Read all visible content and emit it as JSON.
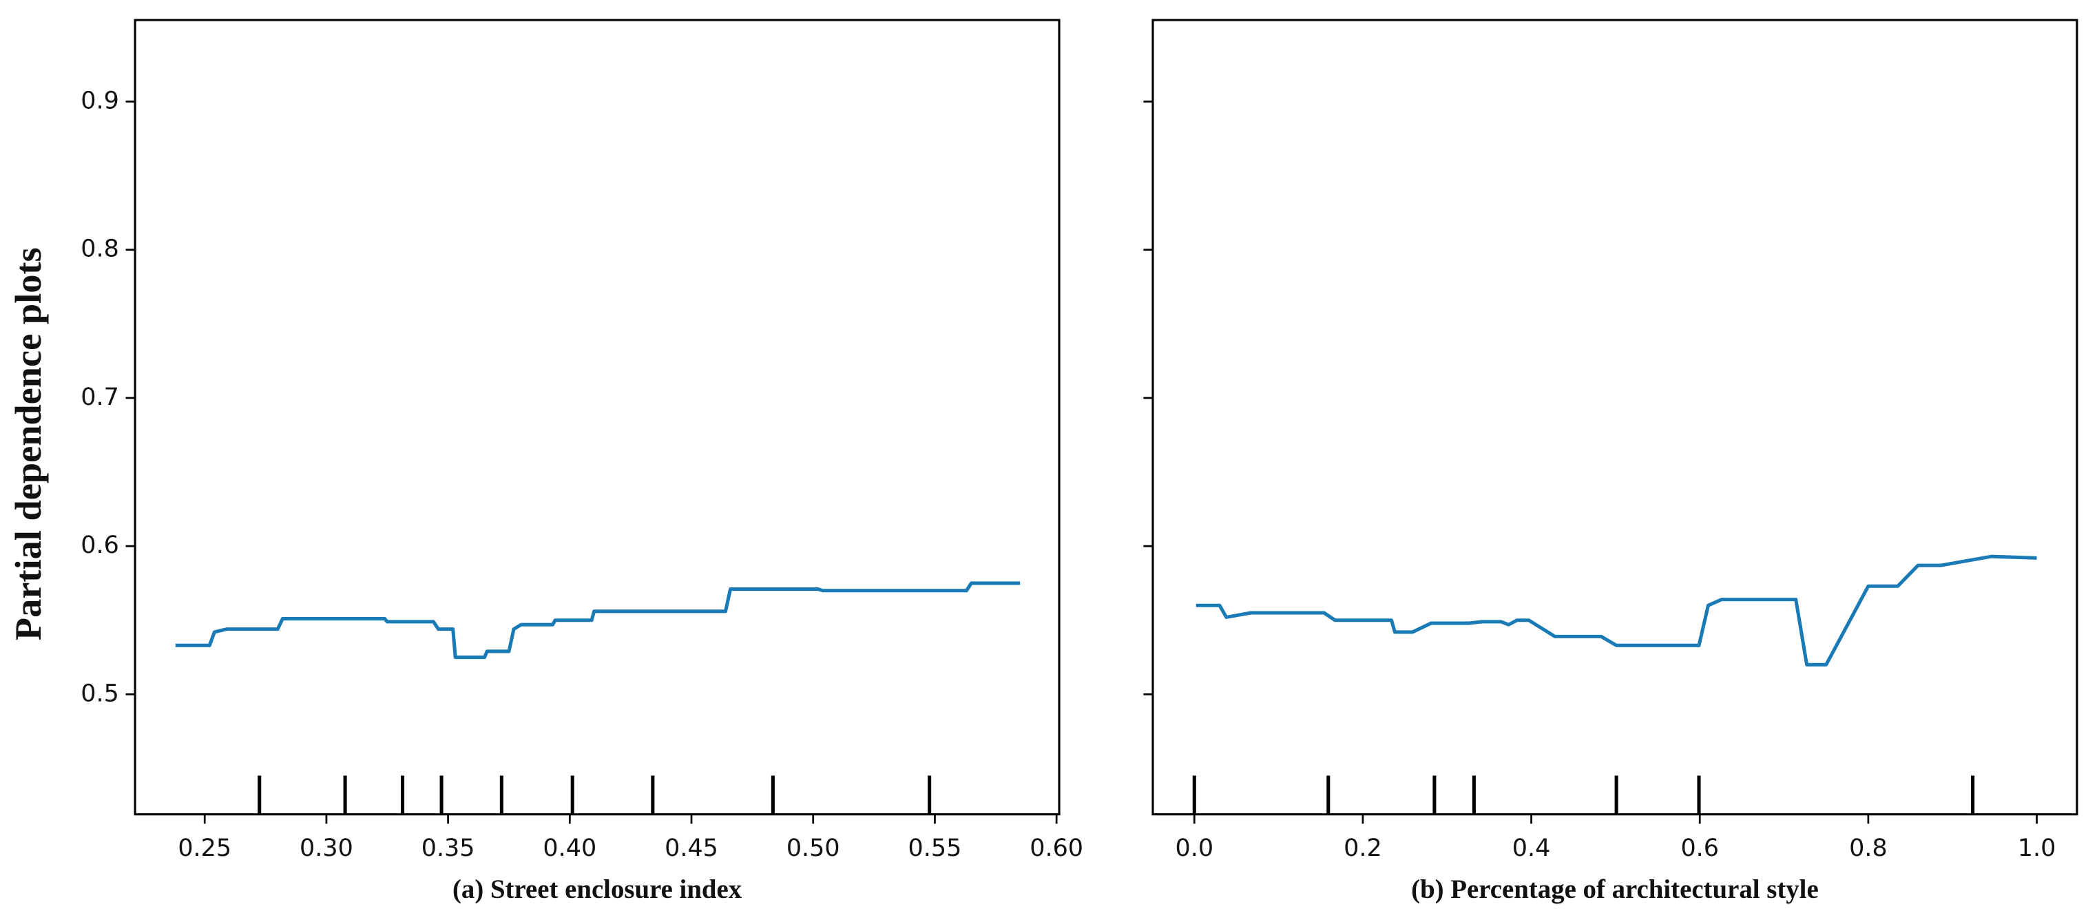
{
  "chart_data": [
    {
      "type": "line",
      "ylabel": "Partial dependence plots",
      "xlabel": "(a) Street enclosure index",
      "color": "#1a7ab5",
      "x": [
        0.238,
        0.252,
        0.254,
        0.259,
        0.28,
        0.282,
        0.324,
        0.325,
        0.344,
        0.346,
        0.352,
        0.353,
        0.365,
        0.366,
        0.375,
        0.377,
        0.38,
        0.393,
        0.394,
        0.409,
        0.41,
        0.464,
        0.466,
        0.502,
        0.504,
        0.563,
        0.565,
        0.585
      ],
      "values": [
        0.533,
        0.533,
        0.542,
        0.544,
        0.544,
        0.551,
        0.551,
        0.549,
        0.549,
        0.544,
        0.544,
        0.525,
        0.525,
        0.529,
        0.529,
        0.544,
        0.547,
        0.547,
        0.55,
        0.55,
        0.556,
        0.556,
        0.571,
        0.571,
        0.57,
        0.57,
        0.575,
        0.575
      ],
      "deciles": [
        0.2725,
        0.3077,
        0.3313,
        0.3473,
        0.372,
        0.4011,
        0.4341,
        0.4835,
        0.5478
      ],
      "xlim": [
        0.2214,
        0.6011
      ],
      "xticks": [
        0.25,
        {
          "value": 0.3,
          "label": "0.30"
        },
        0.35,
        {
          "value": 0.4,
          "label": "0.40"
        },
        0.45,
        {
          "value": 0.5,
          "label": "0.50"
        },
        0.55,
        {
          "value": 0.6,
          "label": "0.60"
        }
      ],
      "ylim": [
        0.419,
        0.955
      ],
      "yticks": [
        0.5,
        0.6,
        0.7,
        0.8,
        0.9
      ]
    },
    {
      "type": "line",
      "xlabel": "(b) Percentage of architectural style",
      "color": "#1a7ab5",
      "x": [
        0.002,
        0.03,
        0.038,
        0.067,
        0.154,
        0.167,
        0.234,
        0.238,
        0.259,
        0.281,
        0.326,
        0.342,
        0.364,
        0.373,
        0.383,
        0.397,
        0.428,
        0.448,
        0.456,
        0.483,
        0.501,
        0.599,
        0.61,
        0.626,
        0.714,
        0.727,
        0.75,
        0.8,
        0.835,
        0.859,
        0.886,
        0.946,
        1.0
      ],
      "values": [
        0.56,
        0.56,
        0.552,
        0.555,
        0.555,
        0.55,
        0.55,
        0.542,
        0.542,
        0.548,
        0.548,
        0.549,
        0.549,
        0.547,
        0.55,
        0.55,
        0.539,
        0.539,
        0.539,
        0.539,
        0.533,
        0.533,
        0.56,
        0.564,
        0.564,
        0.52,
        0.52,
        0.573,
        0.573,
        0.587,
        0.587,
        0.593,
        0.592
      ],
      "deciles": [
        0.0,
        0.159,
        0.285,
        0.332,
        0.501,
        0.599,
        0.924
      ],
      "xlim": [
        -0.0493,
        1.0477
      ],
      "xticks": [
        {
          "value": 0,
          "label": "0.0"
        },
        0.2,
        0.4,
        0.6,
        0.8,
        {
          "value": 1,
          "label": "1.0"
        }
      ],
      "ylim": [
        0.419,
        0.955
      ],
      "yticks": [
        0.5,
        0.6,
        0.7,
        0.8,
        0.9
      ]
    }
  ]
}
